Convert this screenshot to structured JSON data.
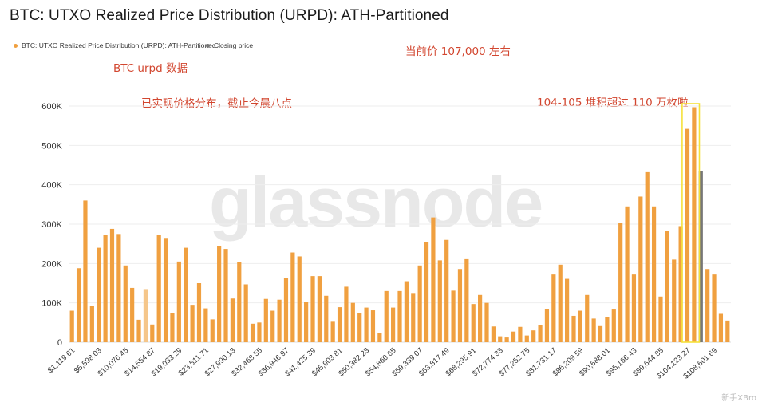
{
  "title": "BTC: UTXO Realized Price Distribution (URPD): ATH-Partitioned",
  "legend": [
    {
      "label": "BTC: UTXO Realized Price Distribution (URPD): ATH-Partitioned",
      "color": "#f0a040"
    },
    {
      "label": "Closing price",
      "color": "#777777"
    }
  ],
  "annotations": {
    "price_note": "当前价 107,000 左右",
    "urpd_note": "BTC urpd 数据",
    "dist_note": "已实现价格分布，截止今晨八点",
    "cluster_note": "104-105 堆积超过 110 万枚啦"
  },
  "watermark": "glassnode",
  "corner_mark": "新手XBro",
  "colors": {
    "bar": "#f0a040",
    "bar_highlight": "#f5c68a",
    "closing": "#777777",
    "box": "#f5e13a",
    "annotation": "#d2462f"
  },
  "chart_data": {
    "type": "bar",
    "title": "BTC: UTXO Realized Price Distribution (URPD): ATH-Partitioned",
    "xlabel": "",
    "ylabel": "",
    "ylim": [
      0,
      600000
    ],
    "yticks": [
      0,
      100000,
      200000,
      300000,
      400000,
      500000,
      600000
    ],
    "ytick_labels": [
      "0",
      "100K",
      "200K",
      "300K",
      "400K",
      "500K",
      "600K"
    ],
    "xtick_labels": [
      "$1,119.61",
      "$5,598.03",
      "$10,076.45",
      "$14,554.87",
      "$19,033.29",
      "$23,511.71",
      "$27,990.13",
      "$32,468.55",
      "$36,946.97",
      "$41,425.39",
      "$45,903.81",
      "$50,382.23",
      "$54,860.65",
      "$59,339.07",
      "$63,817.49",
      "$68,295.91",
      "$72,774.33",
      "$77,252.75",
      "$81,731.17",
      "$86,209.59",
      "$90,688.01",
      "$95,166.43",
      "$99,644.85",
      "$104,123.27",
      "$108,601.69"
    ],
    "series": [
      {
        "name": "BTC: UTXO Realized Price Distribution (URPD): ATH-Partitioned",
        "values": [
          80000,
          188000,
          360000,
          93000,
          240000,
          272000,
          288000,
          275000,
          195000,
          138000,
          57000,
          135000,
          45000,
          273000,
          265000,
          75000,
          205000,
          240000,
          95000,
          150000,
          86000,
          58000,
          245000,
          237000,
          111000,
          204000,
          147000,
          47000,
          50000,
          110000,
          80000,
          108000,
          164000,
          228000,
          218000,
          103000,
          168000,
          168000,
          118000,
          52000,
          89000,
          141000,
          100000,
          75000,
          88000,
          81000,
          24000,
          130000,
          88000,
          130000,
          155000,
          125000,
          195000,
          255000,
          317000,
          208000,
          260000,
          131000,
          186000,
          211000,
          97000,
          120000,
          100000,
          40000,
          15000,
          12000,
          27000,
          39000,
          17000,
          30000,
          43000,
          84000,
          172000,
          197000,
          161000,
          67000,
          80000,
          120000,
          60000,
          41000,
          63000,
          83000,
          303000,
          345000,
          172000,
          370000,
          432000,
          345000,
          116000,
          282000,
          210000,
          295000,
          542000,
          597000,
          0,
          186000,
          172000,
          72000,
          55000
        ],
        "highlight_index": 11,
        "closing_index": 94,
        "closing_value": 435000
      }
    ]
  }
}
